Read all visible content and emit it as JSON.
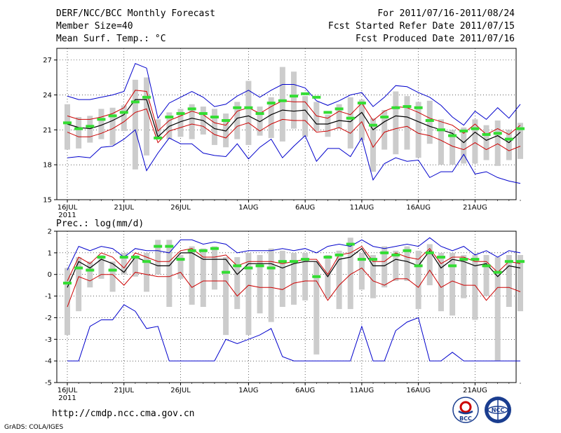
{
  "header": {
    "title": "DERF/NCC/BCC Monthly Forecast",
    "member_size": "Member Size=40",
    "variable": "Mean Surf. Temp.: °C",
    "period": "For 2011/07/16-2011/08/24",
    "fcst_started": "Fcst Started Refer Date 2011/07/15",
    "fcst_produced": "Fcst Produced Date 2011/07/16"
  },
  "footer": {
    "url": "http://cmdp.ncc.cma.gov.cn",
    "credit": "GrADS: COLA/IGES",
    "logo_bcc": "BCC",
    "logo_ncc": "NCC"
  },
  "colors": {
    "max_min": "#0000cc",
    "spread": "#cc0000",
    "mean": "#000000",
    "box": "#cccccc",
    "marker": "#33dd33"
  },
  "chart_data": [
    {
      "type": "line",
      "title": "Mean Surf. Temp.: °C",
      "ylabel": "°C",
      "ylim": [
        15,
        28
      ],
      "yticks": [
        15,
        18,
        21,
        24,
        27
      ],
      "x_tick_labels": [
        {
          "day": 0,
          "label": "16JUL"
        },
        {
          "day": 5,
          "label": "21JUL"
        },
        {
          "day": 10,
          "label": "26JUL"
        },
        {
          "day": 16,
          "label": "1AUG"
        },
        {
          "day": 21,
          "label": "6AUG"
        },
        {
          "day": 26,
          "label": "11AUG"
        },
        {
          "day": 31,
          "label": "16AUG"
        },
        {
          "day": 36,
          "label": "21AUG"
        }
      ],
      "x_year_label": "2011",
      "series": [
        {
          "name": "max",
          "values": [
            23.9,
            23.6,
            23.6,
            23.8,
            24.0,
            24.3,
            26.7,
            26.3,
            22.0,
            23.3,
            23.8,
            24.3,
            23.8,
            23.0,
            23.2,
            23.9,
            24.4,
            23.8,
            24.4,
            24.9,
            24.9,
            24.6,
            23.5,
            23.1,
            23.5,
            24.0,
            24.2,
            23.0,
            23.8,
            24.8,
            24.7,
            24.2,
            23.8,
            23.1,
            22.1,
            21.4,
            22.6,
            21.9,
            22.9,
            22.0,
            23.2
          ]
        },
        {
          "name": "upper",
          "values": [
            22.2,
            21.9,
            21.9,
            22.1,
            22.4,
            22.9,
            24.4,
            24.3,
            20.9,
            21.8,
            22.2,
            22.6,
            22.3,
            21.6,
            21.4,
            22.6,
            22.9,
            22.4,
            23.0,
            23.5,
            23.4,
            23.4,
            22.2,
            22.0,
            22.6,
            22.3,
            23.3,
            21.8,
            22.6,
            23.0,
            22.9,
            22.5,
            22.0,
            21.7,
            21.4,
            20.7,
            21.5,
            20.6,
            21.1,
            20.6,
            21.4
          ]
        },
        {
          "name": "mean",
          "values": [
            21.5,
            21.2,
            21.1,
            21.4,
            21.8,
            22.3,
            23.6,
            23.6,
            20.4,
            21.3,
            21.7,
            22.0,
            21.8,
            21.1,
            20.9,
            22.0,
            22.2,
            21.7,
            22.3,
            22.7,
            22.6,
            22.7,
            21.5,
            21.5,
            21.8,
            21.7,
            22.5,
            21.0,
            21.7,
            22.2,
            22.1,
            21.7,
            21.3,
            21.0,
            20.7,
            19.9,
            20.8,
            20.1,
            20.5,
            19.9,
            20.8
          ]
        },
        {
          "name": "lower",
          "values": [
            20.8,
            20.4,
            20.4,
            20.7,
            21.1,
            21.7,
            22.5,
            22.8,
            19.9,
            20.9,
            21.2,
            21.5,
            21.3,
            20.6,
            20.3,
            21.3,
            21.6,
            20.9,
            21.5,
            21.9,
            21.8,
            21.8,
            20.8,
            20.9,
            21.2,
            20.7,
            21.7,
            19.5,
            20.8,
            21.1,
            21.3,
            20.7,
            20.5,
            20.1,
            19.6,
            19.3,
            19.9,
            19.3,
            19.8,
            19.2,
            19.6
          ]
        },
        {
          "name": "min",
          "values": [
            18.6,
            18.7,
            18.6,
            19.5,
            19.6,
            20.2,
            21.0,
            17.5,
            19.0,
            20.3,
            19.8,
            19.8,
            19.0,
            18.8,
            18.7,
            19.8,
            18.5,
            19.5,
            20.2,
            18.6,
            19.6,
            20.5,
            18.3,
            19.4,
            19.4,
            18.7,
            20.3,
            16.7,
            18.1,
            18.6,
            18.3,
            18.4,
            16.9,
            17.4,
            17.4,
            18.9,
            17.2,
            17.4,
            16.9,
            16.6,
            16.4
          ]
        },
        {
          "name": "marker",
          "values": [
            21.6,
            21.1,
            21.3,
            21.9,
            22.2,
            22.5,
            23.4,
            23.8,
            20.3,
            22.1,
            22.4,
            22.8,
            22.4,
            22.1,
            21.8,
            22.9,
            22.9,
            22.4,
            23.3,
            23.5,
            23.9,
            24.1,
            23.8,
            22.5,
            22.8,
            22.0,
            23.3,
            21.4,
            22.1,
            22.9,
            23.0,
            22.9,
            21.8,
            21.0,
            20.5,
            20.9,
            21.1,
            20.6,
            20.7,
            20.2,
            21.1
          ]
        },
        {
          "name": "box_top",
          "values": [
            23.2,
            22.1,
            22.2,
            22.8,
            22.9,
            23.1,
            25.3,
            25.5,
            21.9,
            22.5,
            22.8,
            23.2,
            23.0,
            22.8,
            22.4,
            23.4,
            25.2,
            23.0,
            23.8,
            26.4,
            26.0,
            23.9,
            23.4,
            22.3,
            23.2,
            23.8,
            23.6,
            22.0,
            22.7,
            24.3,
            23.9,
            23.4,
            23.5,
            21.9,
            21.0,
            21.2,
            21.9,
            21.4,
            21.8,
            21.0,
            21.6
          ]
        },
        {
          "name": "box_bottom",
          "values": [
            19.3,
            19.4,
            19.9,
            20.2,
            19.7,
            20.9,
            17.6,
            18.8,
            20.4,
            20.2,
            20.4,
            20.2,
            20.6,
            19.7,
            19.5,
            20.2,
            19.7,
            20.5,
            20.3,
            20.0,
            21.1,
            20.4,
            20.9,
            20.4,
            21.1,
            19.4,
            20.1,
            17.4,
            19.3,
            18.9,
            19.3,
            18.6,
            19.8,
            18.0,
            18.0,
            18.1,
            18.1,
            18.4,
            17.9,
            18.4,
            18.5
          ]
        }
      ]
    },
    {
      "type": "line",
      "title": "Prec.: log(mm/d)",
      "ylabel": "log(mm/d)",
      "ylim": [
        -5,
        2
      ],
      "yticks": [
        -5,
        -4,
        -3,
        -2,
        -1,
        0,
        1,
        2
      ],
      "x_tick_labels": [
        {
          "day": 0,
          "label": "16JUL"
        },
        {
          "day": 5,
          "label": "21JUL"
        },
        {
          "day": 10,
          "label": "26JUL"
        },
        {
          "day": 16,
          "label": "1AUG"
        },
        {
          "day": 21,
          "label": "6AUG"
        },
        {
          "day": 26,
          "label": "11AUG"
        },
        {
          "day": 31,
          "label": "16AUG"
        },
        {
          "day": 36,
          "label": "21AUG"
        }
      ],
      "x_year_label": "2011",
      "series": [
        {
          "name": "max",
          "values": [
            0.2,
            1.3,
            1.1,
            1.3,
            1.2,
            0.8,
            1.2,
            1.1,
            1.1,
            1.0,
            1.6,
            1.6,
            1.4,
            1.5,
            1.4,
            1.0,
            1.1,
            1.1,
            1.1,
            1.2,
            1.1,
            1.2,
            1.0,
            1.3,
            1.4,
            1.3,
            1.6,
            1.3,
            1.2,
            1.3,
            1.4,
            1.3,
            1.7,
            1.3,
            1.1,
            1.3,
            0.9,
            1.1,
            0.8,
            1.1,
            1.0
          ]
        },
        {
          "name": "upper",
          "values": [
            -0.3,
            0.8,
            0.5,
            1.0,
            0.8,
            0.3,
            1.0,
            0.8,
            0.6,
            0.6,
            1.1,
            1.2,
            0.8,
            0.8,
            0.9,
            0.4,
            0.6,
            0.6,
            0.6,
            0.5,
            0.6,
            0.7,
            0.7,
            0.0,
            0.9,
            1.0,
            1.3,
            0.6,
            0.6,
            1.0,
            0.8,
            0.7,
            1.2,
            0.5,
            0.8,
            0.8,
            0.6,
            0.6,
            0.1,
            0.6,
            0.5
          ]
        },
        {
          "name": "mean",
          "values": [
            -0.6,
            0.6,
            0.3,
            0.7,
            0.5,
            0.1,
            0.8,
            0.6,
            0.4,
            0.4,
            1.0,
            1.0,
            0.7,
            0.7,
            0.7,
            0.0,
            0.5,
            0.5,
            0.5,
            0.3,
            0.5,
            0.6,
            0.6,
            -0.1,
            0.7,
            0.8,
            1.2,
            0.4,
            0.4,
            0.7,
            0.6,
            0.4,
            1.1,
            0.3,
            0.7,
            0.6,
            0.4,
            0.5,
            -0.1,
            0.4,
            0.3
          ]
        },
        {
          "name": "lower",
          "values": [
            -1.5,
            -0.1,
            -0.3,
            0.0,
            0.0,
            -0.5,
            0.1,
            0.0,
            -0.1,
            -0.1,
            0.1,
            -0.6,
            -0.3,
            -0.3,
            -0.3,
            -1.0,
            -0.5,
            -0.6,
            -0.6,
            -0.7,
            -0.4,
            -0.3,
            -0.3,
            -1.2,
            -0.5,
            0.0,
            0.3,
            -0.3,
            -0.5,
            -0.2,
            -0.2,
            -0.6,
            0.2,
            -0.6,
            -0.3,
            -0.5,
            -0.5,
            -1.2,
            -0.6,
            -0.6,
            -0.8
          ]
        },
        {
          "name": "min",
          "values": [
            -4.0,
            -4.0,
            -2.4,
            -2.1,
            -2.1,
            -1.4,
            -1.7,
            -2.5,
            -2.4,
            -4.0,
            -4.0,
            -4.0,
            -4.0,
            -4.0,
            -3.0,
            -3.2,
            -3.0,
            -2.8,
            -2.5,
            -3.8,
            -4.0,
            -4.0,
            -4.0,
            -4.0,
            -4.0,
            -4.0,
            -2.4,
            -4.0,
            -4.0,
            -2.6,
            -2.2,
            -2.0,
            -4.0,
            -4.0,
            -3.6,
            -4.0,
            -4.0,
            -4.0,
            -4.0,
            -4.0,
            -4.0
          ]
        },
        {
          "name": "marker",
          "values": [
            -0.4,
            0.3,
            0.2,
            0.8,
            0.2,
            0.8,
            0.8,
            0.6,
            1.3,
            1.3,
            0.7,
            1.1,
            1.1,
            1.2,
            0.1,
            0.4,
            0.3,
            0.4,
            0.3,
            0.6,
            0.6,
            0.7,
            -0.1,
            0.8,
            0.9,
            1.4,
            0.7,
            0.7,
            1.0,
            0.9,
            1.1,
            0.4,
            1.0,
            0.8,
            0.4,
            0.7,
            0.7,
            0.4,
            0.1,
            0.6,
            0.6
          ]
        },
        {
          "name": "box_top",
          "values": [
            0.3,
            0.8,
            0.6,
            0.9,
            0.6,
            1.0,
            0.9,
            1.0,
            1.6,
            1.6,
            0.9,
            1.3,
            1.2,
            1.3,
            0.8,
            0.8,
            1.0,
            0.9,
            1.2,
            1.1,
            1.0,
            1.0,
            0.6,
            0.9,
            1.1,
            1.7,
            1.0,
            0.9,
            1.3,
            1.1,
            1.3,
            1.1,
            1.4,
            1.0,
            1.0,
            0.9,
            0.9,
            0.9,
            0.8,
            0.9,
            0.9
          ]
        },
        {
          "name": "box_bottom",
          "values": [
            -2.8,
            -1.7,
            -0.6,
            -0.2,
            -0.8,
            0.0,
            -0.1,
            -0.8,
            0.0,
            -1.5,
            -0.2,
            -1.4,
            -1.5,
            -0.7,
            -2.8,
            -1.6,
            -2.8,
            -1.8,
            -2.2,
            -1.5,
            -1.4,
            -1.2,
            -3.7,
            -1.1,
            -1.6,
            -1.6,
            -0.7,
            -1.1,
            -0.6,
            -0.3,
            -0.3,
            -1.6,
            -0.5,
            -1.7,
            -1.9,
            -1.1,
            -2.1,
            -1.0,
            -4.0,
            -1.5,
            -1.7
          ]
        }
      ]
    }
  ]
}
